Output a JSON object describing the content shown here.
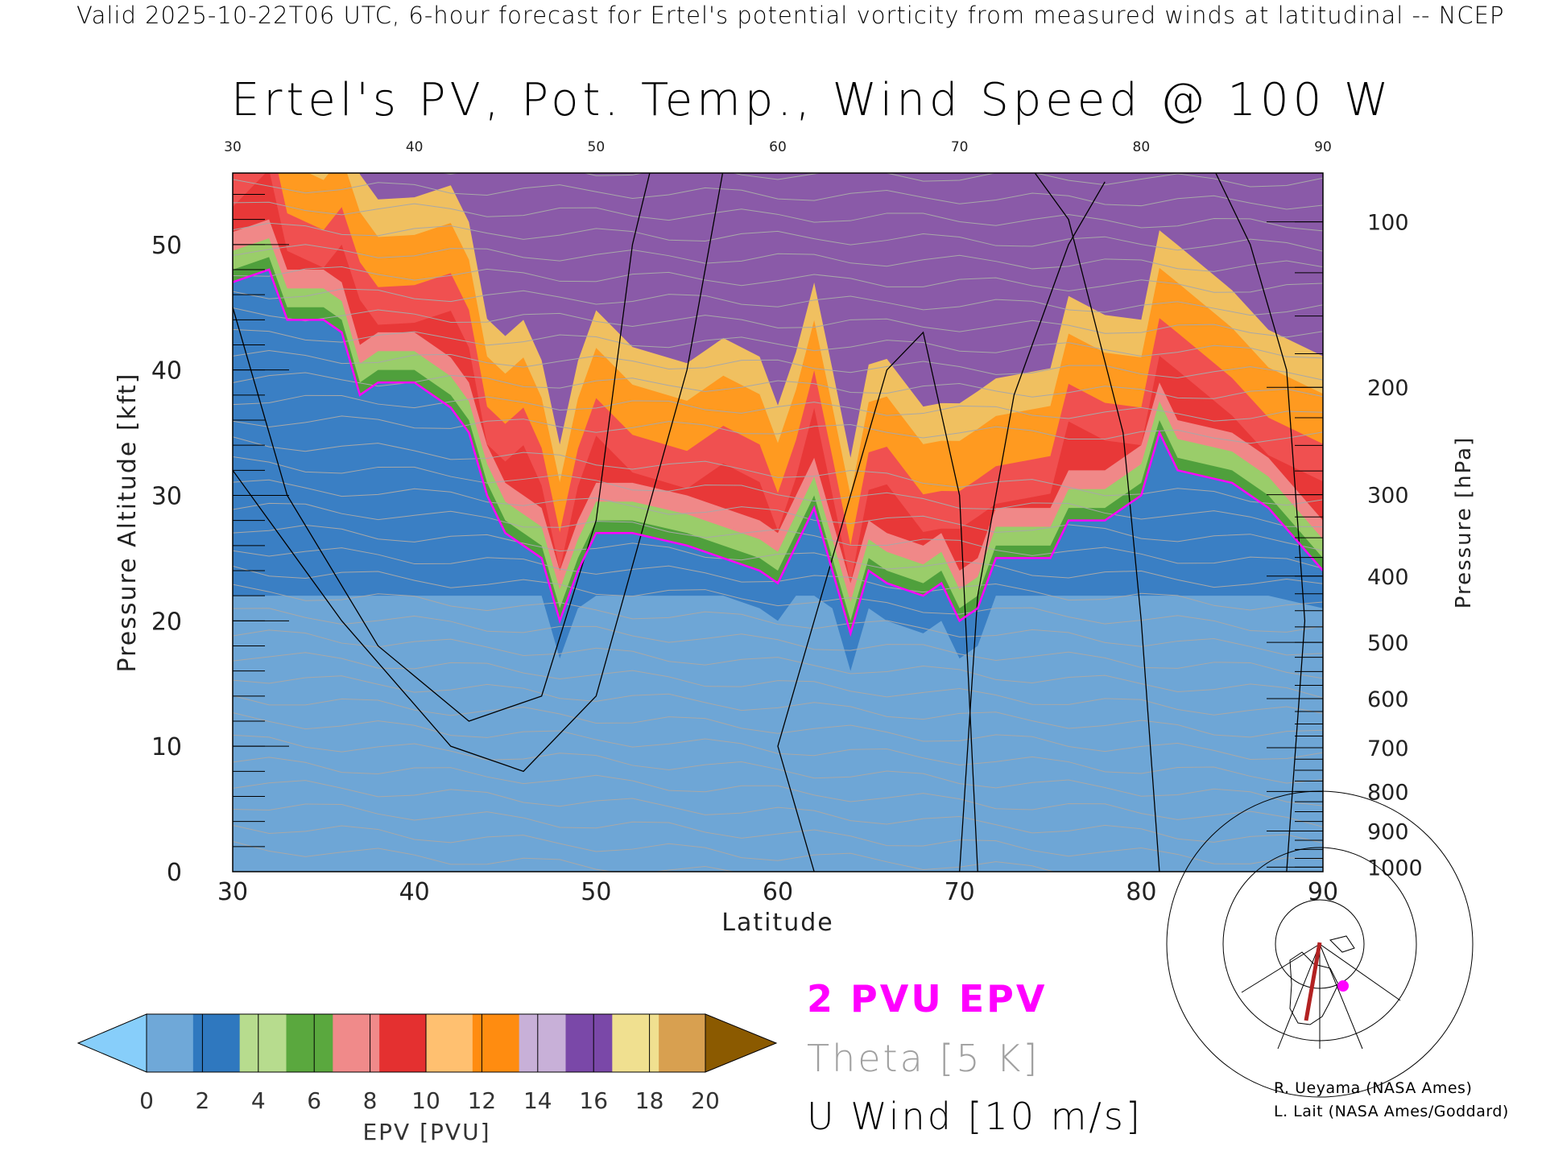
{
  "header": "Valid 2025-10-22T06 UTC, 6-hour forecast for Ertel's potential vorticity from measured winds at latitudinal -- NCEP",
  "chart_data": {
    "type": "heatmap",
    "title": "Ertel's PV, Pot. Temp., Wind Speed @ 100 W",
    "xlabel": "Latitude",
    "ylabel_left": "Pressure Altitude [kft]",
    "ylabel_right": "Pressure [hPa]",
    "xlim": [
      30,
      90
    ],
    "ylim_kft": [
      0,
      55.7
    ],
    "x_ticks": [
      30,
      40,
      50,
      60,
      70,
      80,
      90
    ],
    "y_ticks_kft": [
      0,
      10,
      20,
      30,
      40,
      50
    ],
    "pressure_ticks_hpa": [
      100,
      200,
      300,
      400,
      500,
      600,
      700,
      800,
      900,
      1000
    ],
    "tropopause_2pvu": {
      "label": "2 PVU EPV",
      "color": "#ff00ff",
      "lat": [
        30,
        32,
        33,
        35,
        36,
        37,
        38,
        40,
        42,
        43,
        44,
        45,
        46,
        47,
        48,
        49,
        50,
        52,
        55,
        57,
        59,
        60,
        61,
        62,
        63,
        64,
        65,
        66,
        68,
        69,
        70,
        71,
        72,
        75,
        76,
        78,
        80,
        81,
        82,
        85,
        87,
        90
      ],
      "kft": [
        47,
        48,
        44,
        44,
        43,
        38,
        39,
        39,
        37,
        35,
        30,
        27,
        26,
        25,
        20,
        24,
        27,
        27,
        26,
        25,
        24,
        23,
        26,
        29,
        24,
        19,
        24,
        23,
        22,
        23,
        20,
        21,
        25,
        25,
        28,
        28,
        30,
        35,
        32,
        31,
        29,
        24
      ]
    },
    "colorbar": {
      "label": "EPV [PVU]",
      "ticks": [
        0,
        2,
        4,
        6,
        8,
        10,
        12,
        14,
        16,
        18,
        20
      ],
      "colors": [
        "#6fa8d8",
        "#2f78bf",
        "#b7dc8e",
        "#5aa83e",
        "#f08a8a",
        "#e43030",
        "#ffc070",
        "#ff8c10",
        "#c8b0d8",
        "#7a48a8",
        "#f0e090",
        "#d8a050"
      ],
      "under_color": "#87cefa",
      "over_color": "#8b5a00"
    },
    "legend": [
      {
        "text": "2 PVU EPV",
        "color": "#ff00ff"
      },
      {
        "text": "Theta [5 K]",
        "color": "#a0a0a0"
      },
      {
        "text": "U Wind [10 m/s]",
        "color": "#000000"
      }
    ]
  },
  "credits": [
    "R. Ueyama (NASA Ames)",
    "L. Lait (NASA Ames/Goddard)"
  ]
}
